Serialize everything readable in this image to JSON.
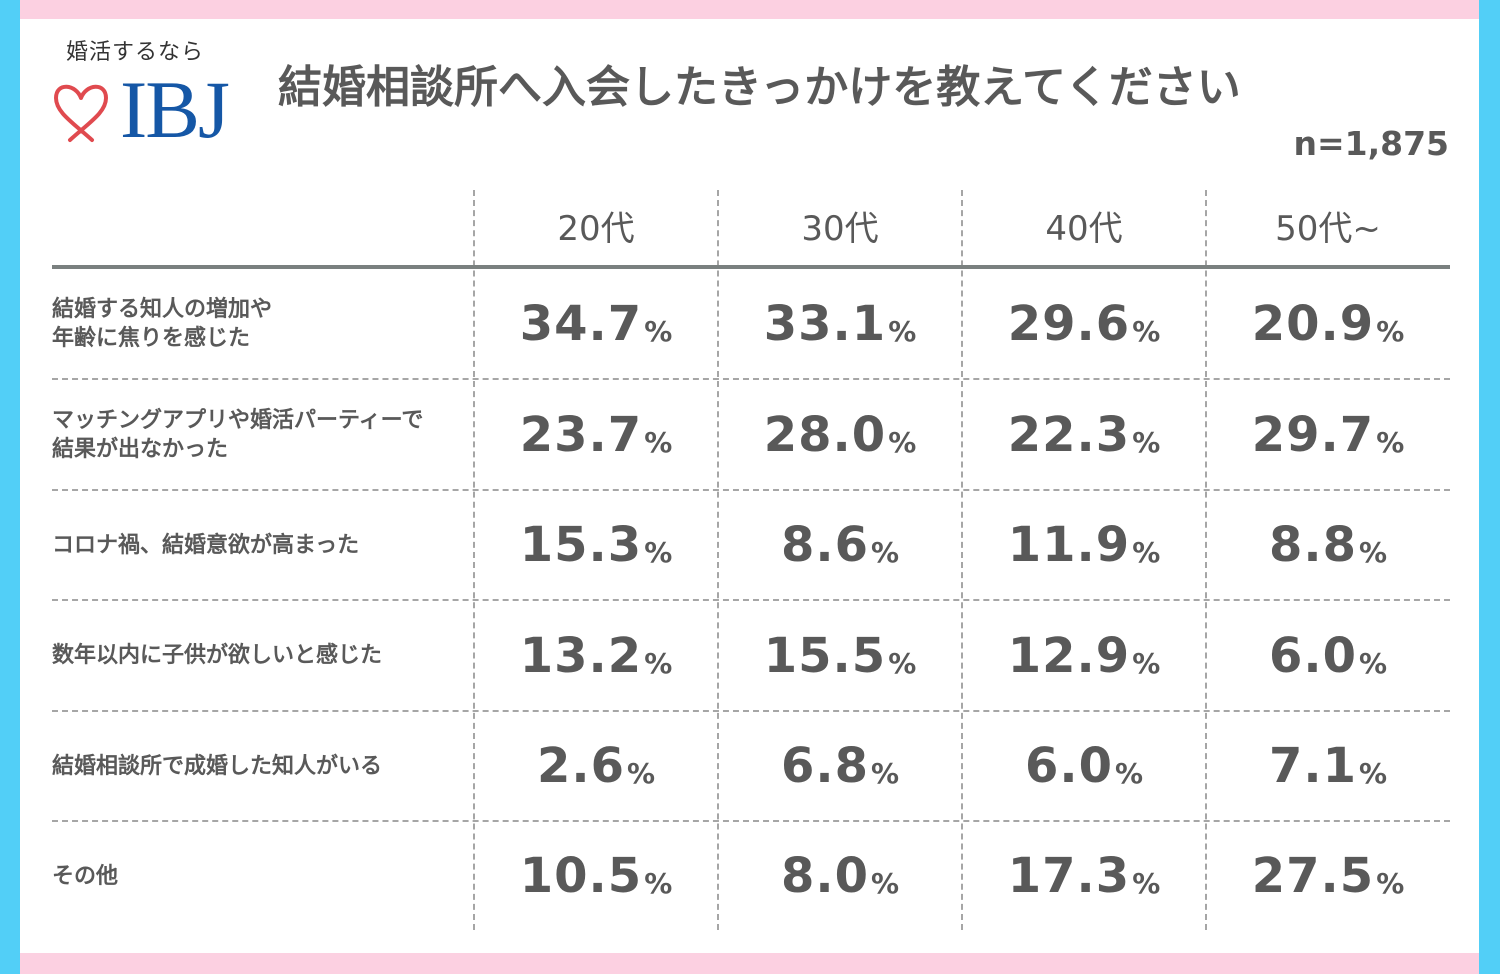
{
  "logo": {
    "tagline": "婚活するなら",
    "brand": "IBJ",
    "heart_color": "#e04a4f",
    "brand_color": "#1557a6"
  },
  "title": "結婚相談所へ入会したきっかけを教えてください",
  "sample_size": "n=1,875",
  "colors": {
    "frame_side": "#52cff7",
    "frame_band": "#fcd0e1",
    "text": "#595959",
    "grid": "#a6a6a6",
    "header_rule": "#7a807f"
  },
  "table": {
    "columns": [
      "20代",
      "30代",
      "40代",
      "50代~"
    ],
    "rows": [
      {
        "label": "結婚する知人の増加や\n年齢に焦りを感じた",
        "values": [
          "34.7",
          "33.1",
          "29.6",
          "20.9"
        ]
      },
      {
        "label": "マッチングアプリや婚活パーティーで\n結果が出なかった",
        "values": [
          "23.7",
          "28.0",
          "22.3",
          "29.7"
        ]
      },
      {
        "label": "コロナ禍、結婚意欲が高まった",
        "values": [
          "15.3",
          "8.6",
          "11.9",
          "8.8"
        ]
      },
      {
        "label": "数年以内に子供が欲しいと感じた",
        "values": [
          "13.2",
          "15.5",
          "12.9",
          "6.0"
        ]
      },
      {
        "label": "結婚相談所で成婚した知人がいる",
        "values": [
          "2.6",
          "6.8",
          "6.0",
          "7.1"
        ]
      },
      {
        "label": "その他",
        "values": [
          "10.5",
          "8.0",
          "17.3",
          "27.5"
        ]
      }
    ],
    "unit": "%"
  },
  "chart_data": {
    "type": "table",
    "title": "結婚相談所へ入会したきっかけを教えてください",
    "subtitle": "n=1,875",
    "unit": "%",
    "categories": [
      "結婚する知人の増加や年齢に焦りを感じた",
      "マッチングアプリや婚活パーティーで結果が出なかった",
      "コロナ禍、結婚意欲が高まった",
      "数年以内に子供が欲しいと感じた",
      "結婚相談所で成婚した知人がいる",
      "その他"
    ],
    "series": [
      {
        "name": "20代",
        "values": [
          34.7,
          23.7,
          15.3,
          13.2,
          2.6,
          10.5
        ]
      },
      {
        "name": "30代",
        "values": [
          33.1,
          28.0,
          8.6,
          15.5,
          6.8,
          8.0
        ]
      },
      {
        "name": "40代",
        "values": [
          29.6,
          22.3,
          11.9,
          12.9,
          6.0,
          17.3
        ]
      },
      {
        "name": "50代~",
        "values": [
          20.9,
          29.7,
          8.8,
          6.0,
          7.1,
          27.5
        ]
      }
    ],
    "grid": true
  }
}
